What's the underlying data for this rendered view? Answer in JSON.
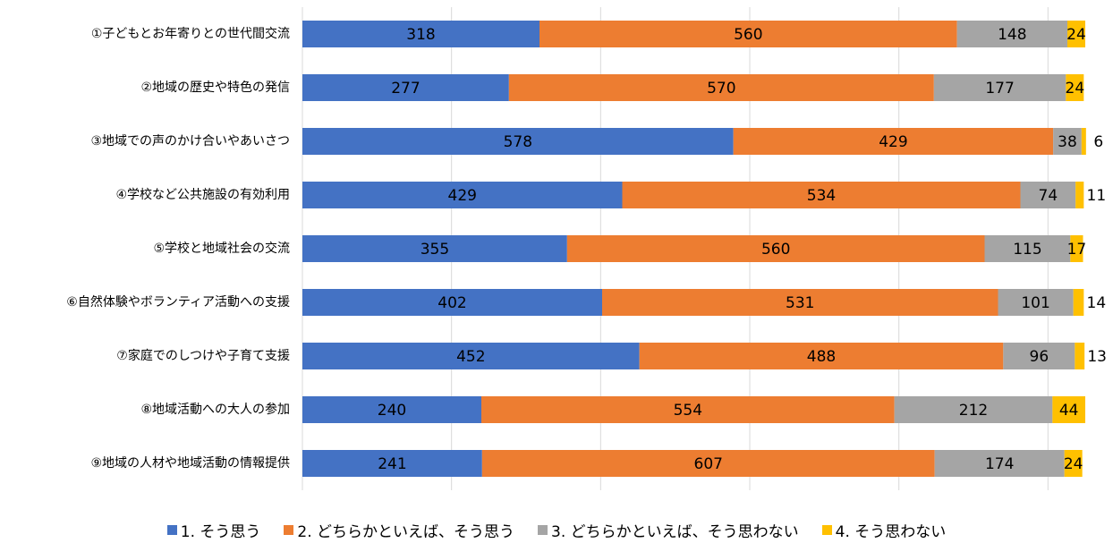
{
  "chart_data": {
    "type": "bar",
    "orientation": "horizontal",
    "stacked": true,
    "categories": [
      "①子どもとお年寄りとの世代間交流",
      "②地域の歴史や特色の発信",
      "③地域での声のかけ合いやあいさつ",
      "④学校など公共施設の有効利用",
      "⑤学校と地域社会の交流",
      "⑥自然体験やボランティア活動への支援",
      "⑦家庭でのしつけや子育て支援",
      "⑧地域活動への大人の参加",
      "⑨地域の人材や地域活動の情報提供"
    ],
    "series": [
      {
        "name": "1. そう思う",
        "color": "#4472C4",
        "label_color": "#000000",
        "values": [
          318,
          277,
          578,
          429,
          355,
          402,
          452,
          240,
          241
        ]
      },
      {
        "name": "2. どちらかといえば、そう思う",
        "color": "#ED7D31",
        "label_color": "#000000",
        "values": [
          560,
          570,
          429,
          534,
          560,
          531,
          488,
          554,
          607
        ]
      },
      {
        "name": "3. どちらかといえば、そう思わない",
        "color": "#A5A5A5",
        "label_color": "#000000",
        "values": [
          148,
          177,
          38,
          74,
          115,
          101,
          96,
          212,
          174
        ]
      },
      {
        "name": "4. そう思わない",
        "color": "#FFC000",
        "label_color": "#000000",
        "values": [
          24,
          24,
          6,
          11,
          17,
          14,
          13,
          44,
          24
        ]
      }
    ],
    "xlim": [
      0,
      1050
    ],
    "grid": true,
    "legend_position": "bottom",
    "xlabel": "",
    "ylabel": "",
    "title": ""
  }
}
